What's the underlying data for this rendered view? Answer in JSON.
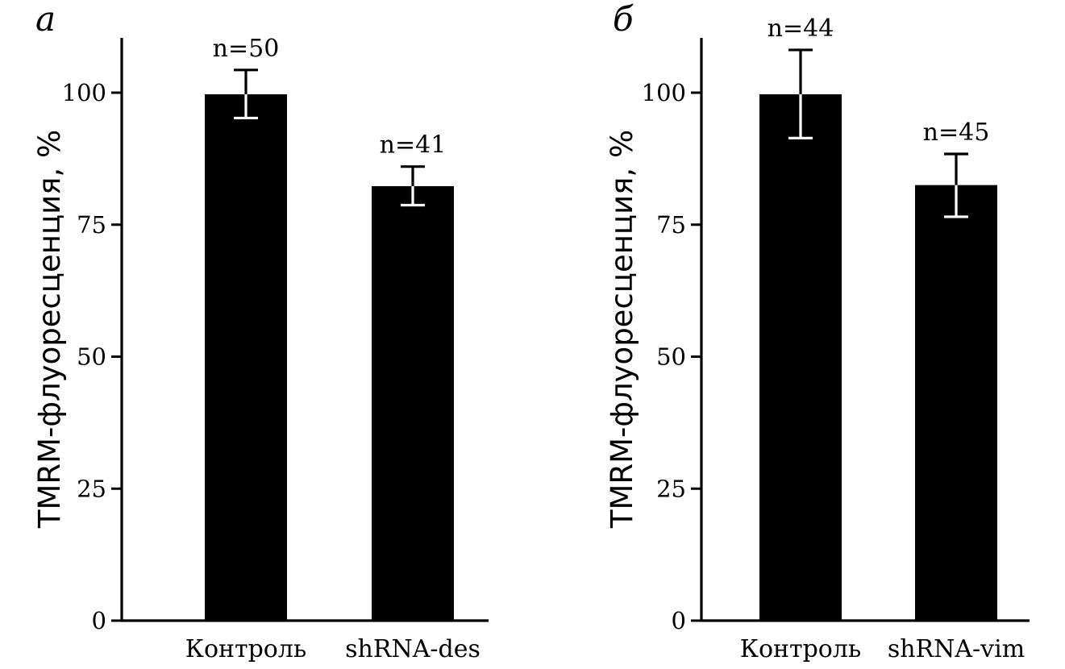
{
  "chart_data": [
    {
      "type": "bar",
      "panel": "a",
      "categories": [
        "Контроль",
        "shRNA-des"
      ],
      "values": [
        99.7,
        82.3
      ],
      "errors_upper": [
        104.3,
        86.0
      ],
      "errors_lower": [
        95.2,
        78.7
      ],
      "n_labels": [
        "n=50",
        "n=41"
      ],
      "ylabel": "TMRM-флуоресценция, %",
      "yticks": [
        "0",
        "25",
        "50",
        "75",
        "100"
      ],
      "ylim": [
        0,
        110
      ],
      "grid": false,
      "colors": {
        "bar": "#000000",
        "error_bar": "#000000"
      }
    },
    {
      "type": "bar",
      "panel": "б",
      "categories": [
        "Контроль",
        "shRNA-vim"
      ],
      "values": [
        99.7,
        82.5
      ],
      "errors_upper": [
        108.1,
        88.4
      ],
      "errors_lower": [
        91.4,
        76.5
      ],
      "n_labels": [
        "n=44",
        "n=45"
      ],
      "ylabel": "TMRM-флуоресценция, %",
      "yticks": [
        "0",
        "25",
        "50",
        "75",
        "100"
      ],
      "ylim": [
        0,
        110
      ],
      "grid": false,
      "colors": {
        "bar": "#000000",
        "error_bar": "#000000"
      }
    }
  ]
}
